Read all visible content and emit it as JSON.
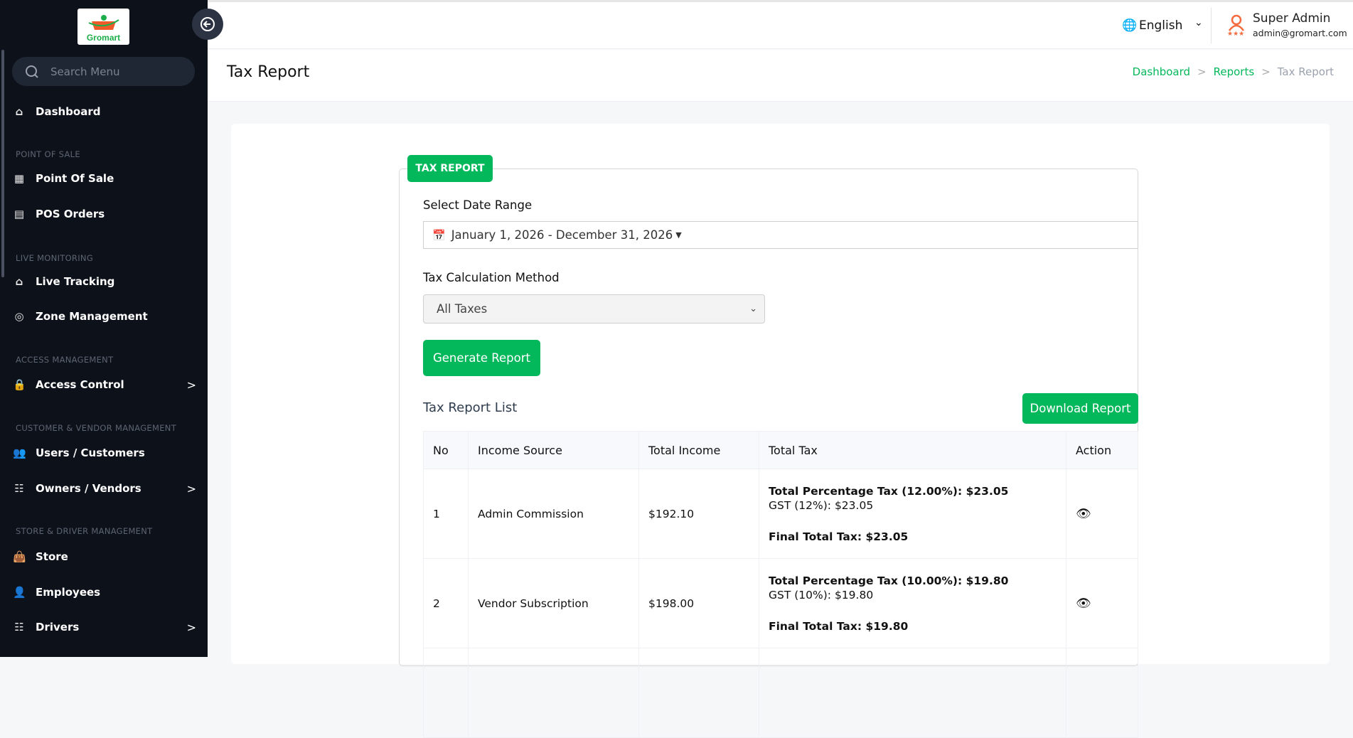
{
  "brand": {
    "logo_text": "Gromart",
    "accent": "#03b75b"
  },
  "sidebar": {
    "search_placeholder": "Search Menu",
    "items": [
      {
        "type": "item",
        "label": "Dashboard",
        "icon": "home-icon"
      },
      {
        "type": "section",
        "label": "POINT OF SALE"
      },
      {
        "type": "item",
        "label": "Point Of Sale",
        "icon": "calculator-icon"
      },
      {
        "type": "item",
        "label": "POS Orders",
        "icon": "receipt-icon"
      },
      {
        "type": "section",
        "label": "LIVE MONITORING"
      },
      {
        "type": "item",
        "label": "Live Tracking",
        "icon": "tracking-icon"
      },
      {
        "type": "item",
        "label": "Zone Management",
        "icon": "location-icon"
      },
      {
        "type": "section",
        "label": "ACCESS MANAGEMENT"
      },
      {
        "type": "item",
        "label": "Access Control",
        "icon": "lock-icon",
        "chevron": true
      },
      {
        "type": "section",
        "label": "CUSTOMER & VENDOR MANAGEMENT"
      },
      {
        "type": "item",
        "label": "Users / Customers",
        "icon": "users-icon"
      },
      {
        "type": "item",
        "label": "Owners / Vendors",
        "icon": "id-card-icon",
        "chevron": true
      },
      {
        "type": "section",
        "label": "STORE & DRIVER MANAGEMENT"
      },
      {
        "type": "item",
        "label": "Store",
        "icon": "store-bag-icon"
      },
      {
        "type": "item",
        "label": "Employees",
        "icon": "user-icon"
      },
      {
        "type": "item",
        "label": "Drivers",
        "icon": "id-card-icon",
        "chevron": true
      }
    ]
  },
  "header": {
    "language": "English",
    "user_name": "Super Admin",
    "user_email": "admin@gromart.com"
  },
  "page": {
    "title": "Tax Report",
    "breadcrumb": [
      "Dashboard",
      "Reports",
      "Tax Report"
    ]
  },
  "form": {
    "legend": "TAX REPORT",
    "date_label": "Select Date Range",
    "date_value": "January 1, 2026 - December 31, 2026",
    "method_label": "Tax Calculation Method",
    "method_value": "All Taxes",
    "generate_label": "Generate Report"
  },
  "list": {
    "title": "Tax Report List",
    "download_label": "Download Report",
    "columns": [
      "No",
      "Income Source",
      "Total Income",
      "Total Tax",
      "Action"
    ],
    "rows": [
      {
        "no": "1",
        "source": "Admin Commission",
        "income": "$192.10",
        "pct": "Total Percentage Tax (12.00%): $23.05",
        "gst": "GST (12%): $23.05",
        "final": "Final Total Tax: $23.05"
      },
      {
        "no": "2",
        "source": "Vendor Subscription",
        "income": "$198.00",
        "pct": "Total Percentage Tax (10.00%): $19.80",
        "gst": "GST (10%): $19.80",
        "final": "Final Total Tax: $19.80"
      }
    ]
  }
}
